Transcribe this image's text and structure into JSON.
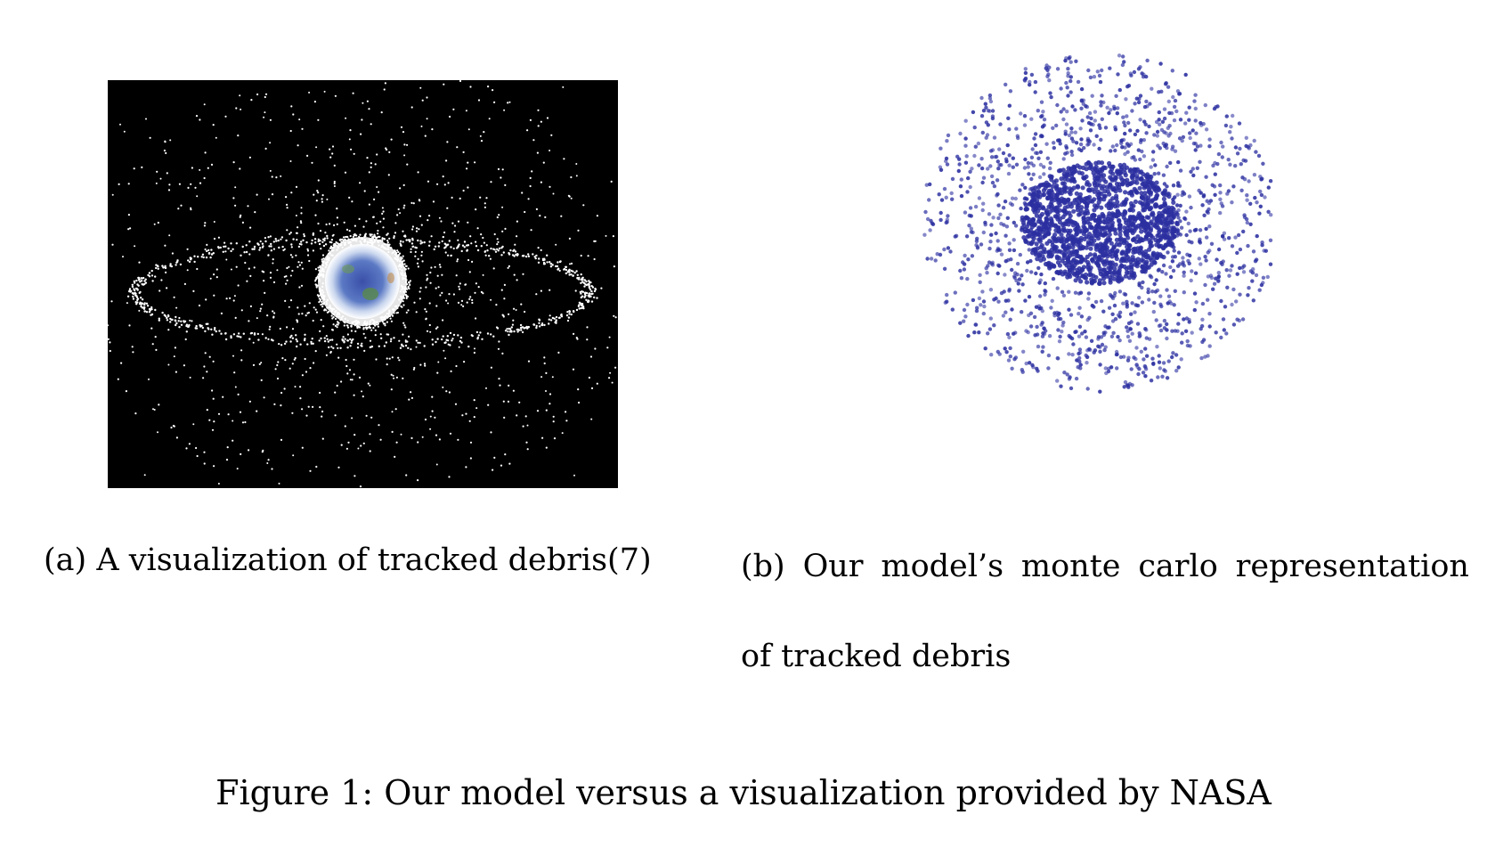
{
  "figure": {
    "caption": "Figure 1: Our model versus a visualization provided by NASA"
  },
  "subfigure_a": {
    "label": "(a)",
    "caption": "A visualization of tracked debris(7)",
    "image_description_colors": {
      "background": "#000000",
      "debris": "#ffffff",
      "earth_core": "#3b5fb0",
      "earth_glow": "#ffffff"
    }
  },
  "subfigure_b": {
    "label": "(b)",
    "caption_words": [
      "Our",
      "model’s",
      "monte",
      "carlo",
      "representation"
    ],
    "caption_line2": "of tracked debris",
    "point_color": "#2b2fa0"
  }
}
